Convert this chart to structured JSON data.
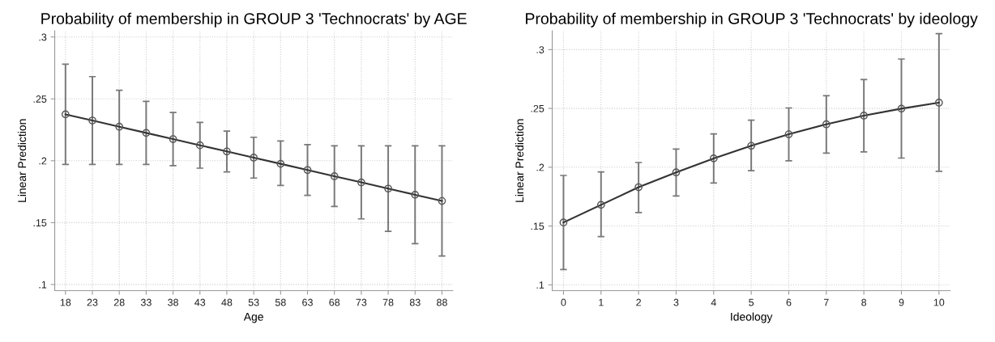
{
  "chart_data": [
    {
      "type": "line",
      "title": "Probability of membership in GROUP 3 'Technocrats' by AGE",
      "xlabel": "Age",
      "ylabel": "Linear Prediction",
      "x": [
        18,
        23,
        28,
        33,
        38,
        43,
        48,
        53,
        58,
        63,
        68,
        73,
        78,
        83,
        88
      ],
      "series": [
        {
          "color": "#333333",
          "values": [
            0.2375,
            0.2325,
            0.2275,
            0.2225,
            0.2175,
            0.2125,
            0.2075,
            0.2025,
            0.1975,
            0.1925,
            0.1875,
            0.1825,
            0.1775,
            0.1725,
            0.1675
          ],
          "errors": [
            [
              0.197,
              0.278
            ],
            [
              0.197,
              0.268
            ],
            [
              0.197,
              0.257
            ],
            [
              0.197,
              0.248
            ],
            [
              0.196,
              0.239
            ],
            [
              0.194,
              0.231
            ],
            [
              0.191,
              0.224
            ],
            [
              0.186,
              0.219
            ],
            [
              0.18,
              0.216
            ],
            [
              0.172,
              0.213
            ],
            [
              0.163,
              0.212
            ],
            [
              0.153,
              0.212
            ],
            [
              0.143,
              0.212
            ],
            [
              0.133,
              0.212
            ],
            [
              0.123,
              0.212
            ]
          ]
        }
      ],
      "xlim": [
        16,
        90
      ],
      "xticks": [
        18,
        23,
        28,
        33,
        38,
        43,
        48,
        53,
        58,
        63,
        68,
        73,
        78,
        83,
        88
      ],
      "ylim": [
        0.095,
        0.305
      ],
      "yticks": [
        {
          "value": 0.1,
          "label": ".1"
        },
        {
          "value": 0.15,
          "label": ".15"
        },
        {
          "value": 0.2,
          "label": ".2"
        },
        {
          "value": 0.25,
          "label": ".25"
        },
        {
          "value": 0.3,
          "label": ".3"
        }
      ],
      "grid": true,
      "marker": "circle",
      "line_style": "solid",
      "legend": false
    },
    {
      "type": "line",
      "title": "Probability of membership in GROUP 3 'Technocrats' by ideology",
      "xlabel": "Ideology",
      "ylabel": "Linear Prediction",
      "x": [
        0,
        1,
        2,
        3,
        4,
        5,
        6,
        7,
        8,
        9,
        10
      ],
      "series": [
        {
          "color": "#333333",
          "values": [
            0.153,
            0.168,
            0.183,
            0.1956,
            0.2075,
            0.2182,
            0.228,
            0.2365,
            0.2439,
            0.2498,
            0.2549
          ],
          "errors": [
            [
              0.113,
              0.193
            ],
            [
              0.141,
              0.196
            ],
            [
              0.1615,
              0.204
            ],
            [
              0.1756,
              0.2154
            ],
            [
              0.1866,
              0.2283
            ],
            [
              0.197,
              0.24
            ],
            [
              0.2055,
              0.2504
            ],
            [
              0.212,
              0.2608
            ],
            [
              0.213,
              0.2746
            ],
            [
              0.2078,
              0.292
            ],
            [
              0.1965,
              0.3135
            ]
          ]
        }
      ],
      "xlim": [
        -0.3,
        10.3
      ],
      "xticks": [
        0,
        1,
        2,
        3,
        4,
        5,
        6,
        7,
        8,
        9,
        10
      ],
      "ylim": [
        0.095,
        0.316
      ],
      "yticks": [
        {
          "value": 0.1,
          "label": ".1"
        },
        {
          "value": 0.15,
          "label": ".15"
        },
        {
          "value": 0.2,
          "label": ".2"
        },
        {
          "value": 0.25,
          "label": ".25"
        },
        {
          "value": 0.3,
          "label": ".3"
        }
      ],
      "grid": true,
      "marker": "circle",
      "line_style": "solid",
      "legend": false
    }
  ]
}
